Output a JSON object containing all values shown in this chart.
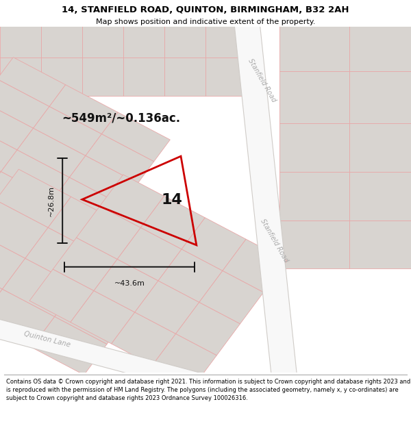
{
  "title_line1": "14, STANFIELD ROAD, QUINTON, BIRMINGHAM, B32 2AH",
  "title_line2": "Map shows position and indicative extent of the property.",
  "footer_text": "Contains OS data © Crown copyright and database right 2021. This information is subject to Crown copyright and database rights 2023 and is reproduced with the permission of HM Land Registry. The polygons (including the associated geometry, namely x, y co-ordinates) are subject to Crown copyright and database rights 2023 Ordnance Survey 100026316.",
  "area_label": "~549m²/~0.136ac.",
  "property_number": "14",
  "dim_width": "~43.6m",
  "dim_height": "~26.8m",
  "road_label_top": "Stanfield Road",
  "road_label_right": "Stanfield Road",
  "road_label_bottom": "Quinton Lane",
  "map_bg": "#f0ece8",
  "road_fill": "#f8f8f8",
  "road_border": "#d0ccc8",
  "block_fill": "#d8d4d0",
  "block_inner_fill": "#e0dcd8",
  "lot_line_color": "#e8a8a8",
  "property_color": "#cc0000",
  "property_lw": 2.0,
  "title_fontsize": 9.5,
  "subtitle_fontsize": 8.0,
  "footer_fontsize": 6.0,
  "area_fontsize": 12,
  "number_fontsize": 16,
  "dim_fontsize": 8,
  "road_label_fontsize": 7,
  "road_label_color": "#aaaaaa"
}
